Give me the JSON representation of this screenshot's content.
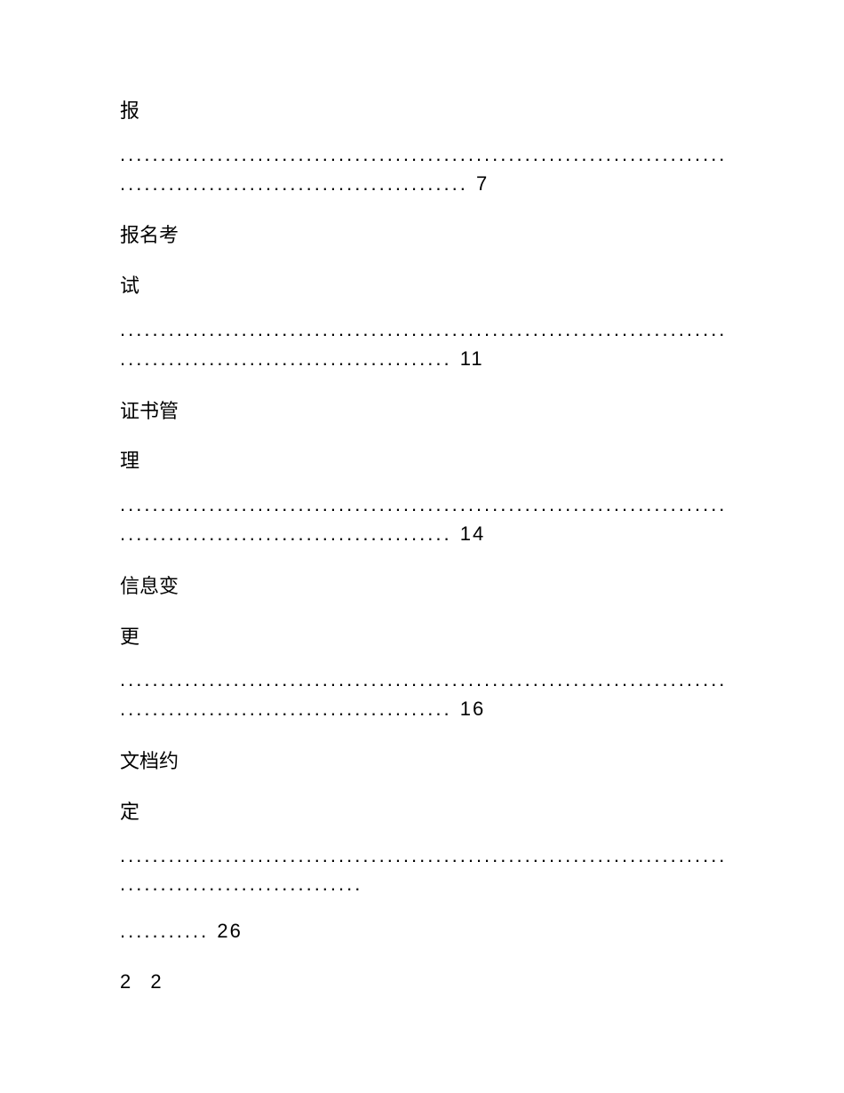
{
  "toc": {
    "entries": [
      {
        "title_part1": "报",
        "title_part2": "",
        "dots1": ".......................................................................................",
        "dots2": "...........................................",
        "page": "7"
      },
      {
        "title_part1": "报名考",
        "title_part2": "试",
        "dots1": ".......................................................................................",
        "dots2": ".........................................",
        "page": "11"
      },
      {
        "title_part1": "证书管",
        "title_part2": "理",
        "dots1": ".......................................................................................",
        "dots2": ".........................................",
        "page": "14"
      },
      {
        "title_part1": "信息变",
        "title_part2": "更",
        "dots1": ".......................................................................................",
        "dots2": ".........................................",
        "page": "16"
      },
      {
        "title_part1": "文档约",
        "title_part2": "定",
        "dots1": ".......................................................................................",
        "dots2": "..............................",
        "dots3": "...........",
        "page": "26"
      }
    ]
  },
  "footer": {
    "page_indicator": "2 2"
  },
  "colors": {
    "background": "#ffffff",
    "text": "#000000"
  },
  "typography": {
    "font_family": "Microsoft YaHei",
    "font_size": 22
  }
}
